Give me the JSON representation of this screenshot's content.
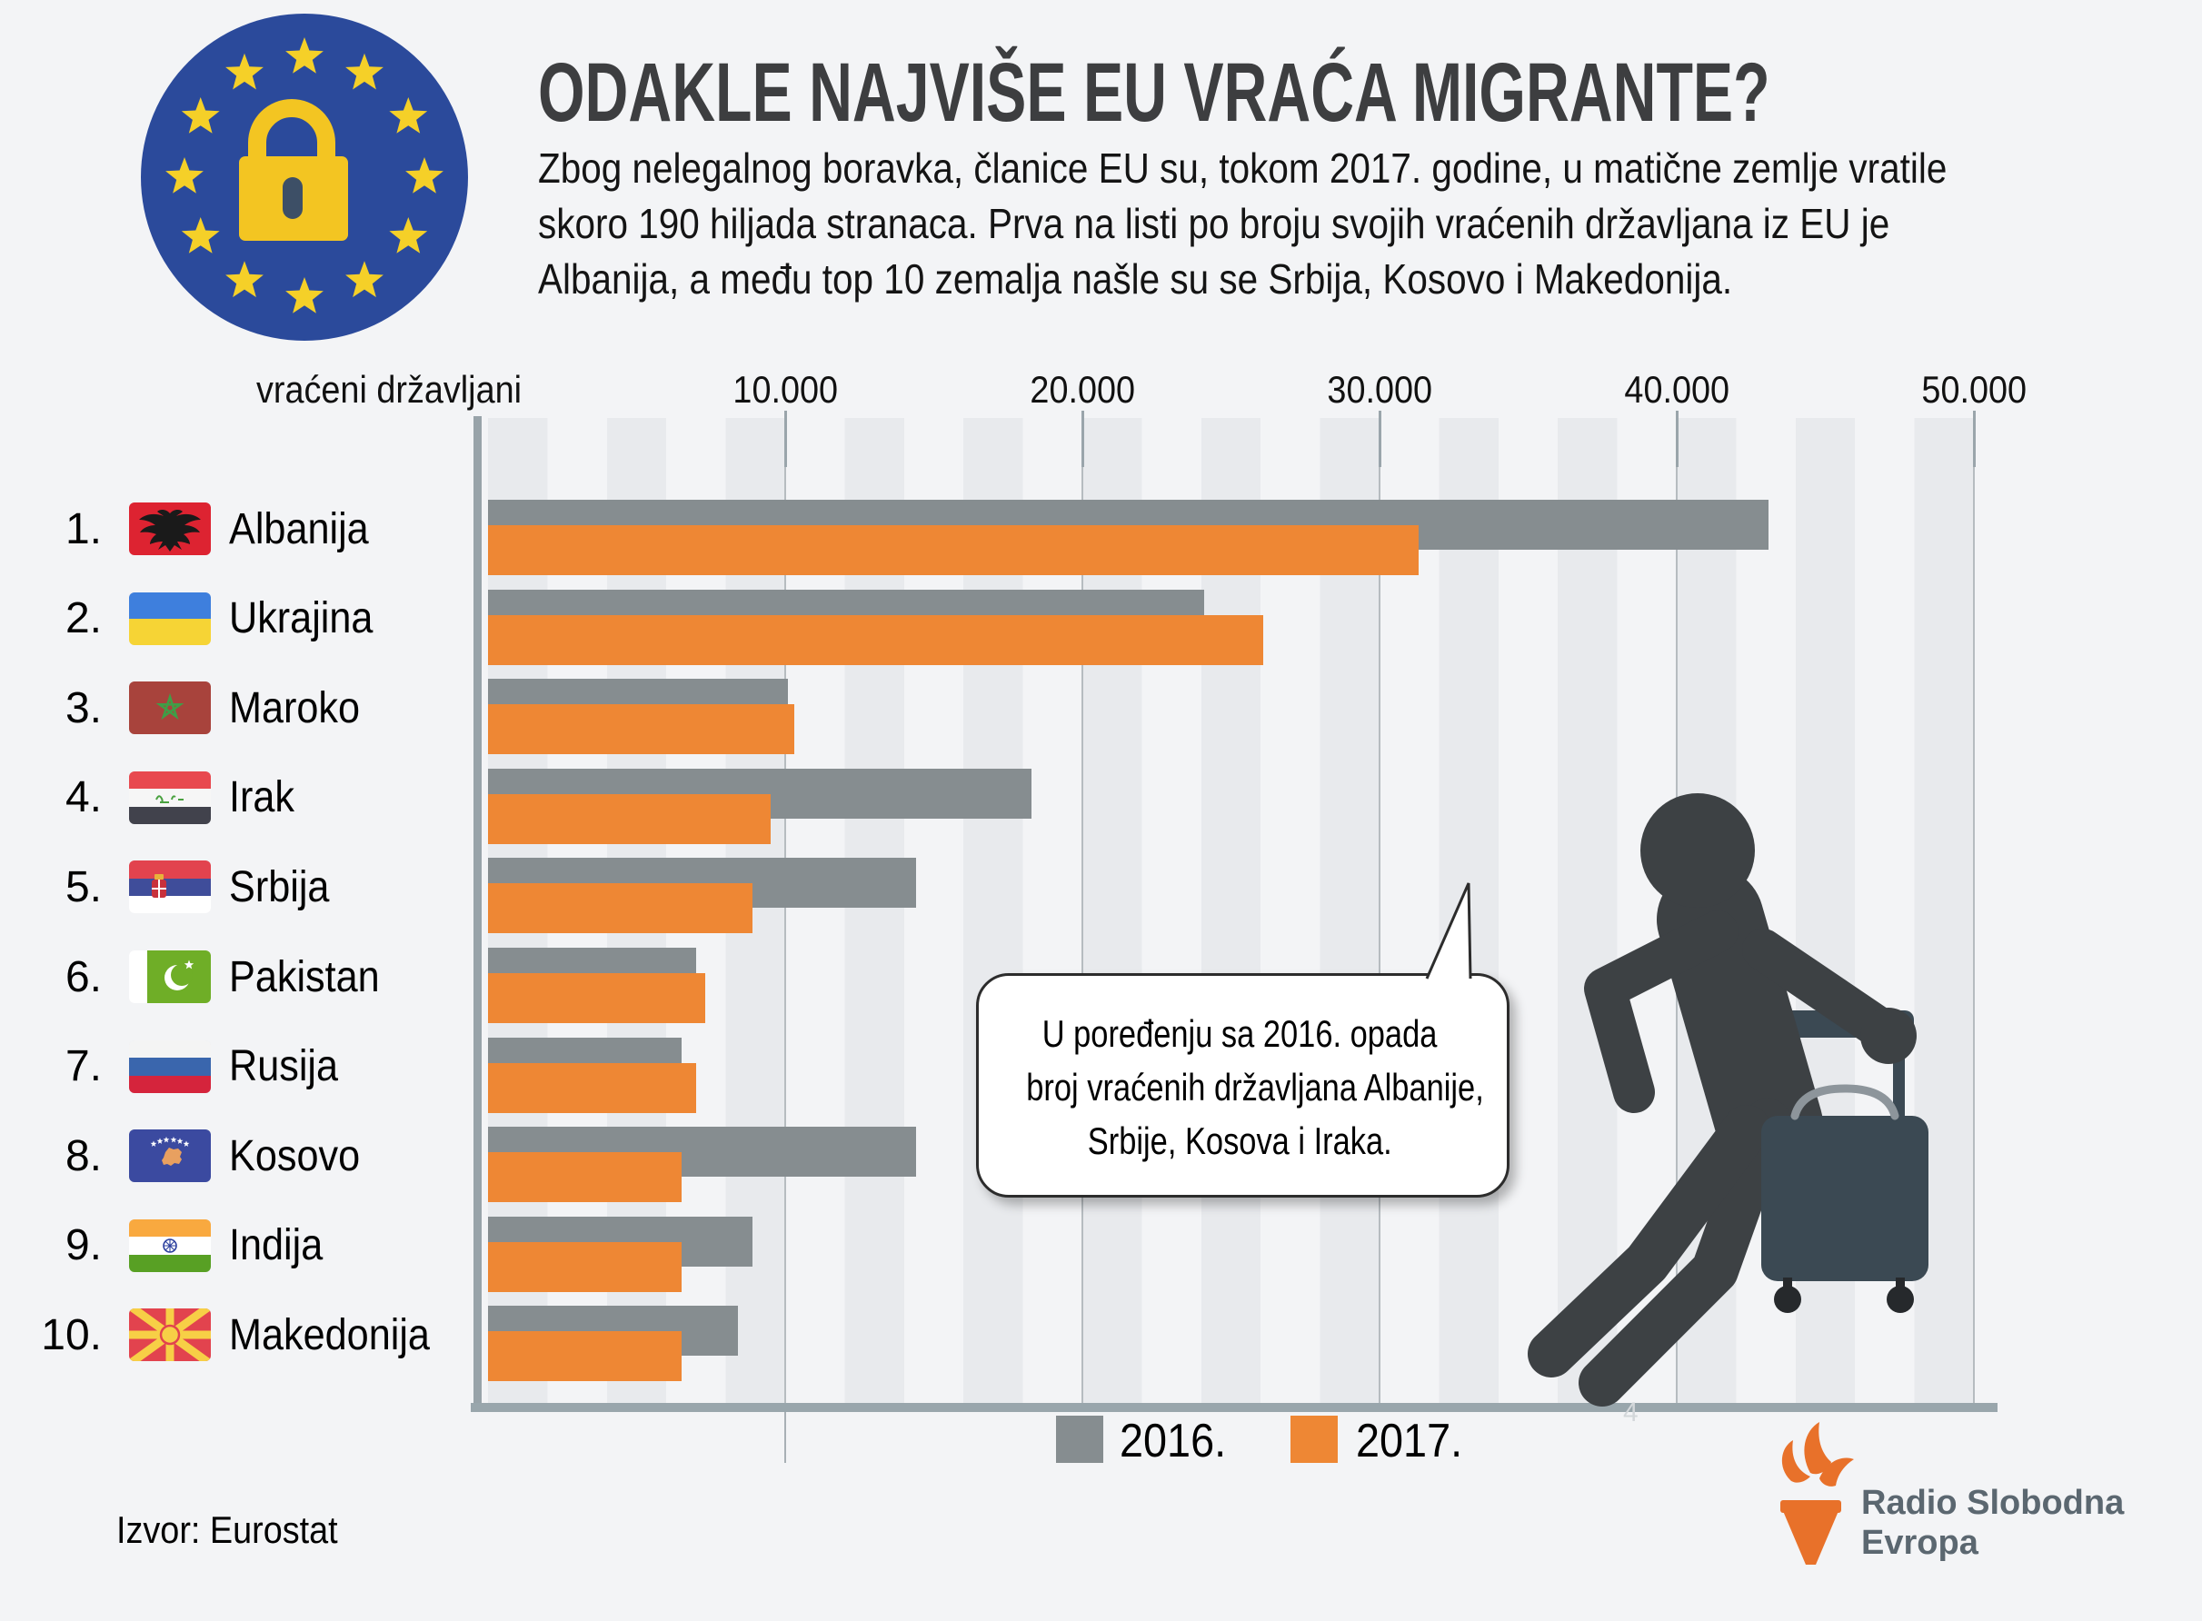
{
  "page": {
    "bg_color": "#f3f4f6"
  },
  "header": {
    "title": "ODAKLE NAJVIŠE EU VRAĆA MIGRANTE?",
    "subtitle_lines": [
      "Zbog nelegalnog boravka, članice EU su, tokom 2017. godine, u matične zemlje vratile",
      "skoro 190 hiljada stranaca. Prva na listi po broju svojih vraćenih državljana iz EU je",
      "Albanija, a među top 10 zemalja našle su se Srbija, Kosovo i Makedonija."
    ]
  },
  "eu_logo": {
    "circle_color": "#2b4a9b",
    "star_color": "#f5d028",
    "padlock_color": "#f3c522",
    "keyhole_color": "#3d4f66"
  },
  "chart": {
    "axis_title": "vraćeni državljani",
    "tick_labels": [
      "10.000",
      "20.000",
      "30.000",
      "40.000",
      "50.000"
    ]
  },
  "chart_data": {
    "type": "bar",
    "orientation": "horizontal",
    "title": "ODAKLE NAJVIŠE EU VRAĆA MIGRANTE?",
    "xlabel": "vraćeni državljani",
    "xlim": [
      0,
      50000
    ],
    "xticks": [
      10000,
      20000,
      30000,
      40000,
      50000
    ],
    "grid": "vertical-stripes",
    "legend_position": "bottom",
    "categories": [
      "Albanija",
      "Ukrajina",
      "Maroko",
      "Irak",
      "Srbija",
      "Pakistan",
      "Rusija",
      "Kosovo",
      "Indija",
      "Makedonija"
    ],
    "ranks": [
      "1.",
      "2.",
      "3.",
      "4.",
      "5.",
      "6.",
      "7.",
      "8.",
      "9.",
      "10."
    ],
    "flags": [
      "albania",
      "ukraine",
      "morocco",
      "iraq",
      "serbia",
      "pakistan",
      "russia",
      "kosovo",
      "india",
      "macedonia"
    ],
    "series": [
      {
        "name": "2016.",
        "color": "#868d90",
        "values": [
          43100,
          24100,
          10100,
          18300,
          14400,
          7000,
          6500,
          14400,
          8900,
          8400
        ]
      },
      {
        "name": "2017.",
        "color": "#ee8734",
        "values": [
          31300,
          26100,
          10300,
          9500,
          8900,
          7300,
          7000,
          6500,
          6500,
          6500
        ]
      }
    ]
  },
  "annotation_bubble": {
    "lines": [
      "U poređenju sa 2016. opada",
      "broj vraćenih državljana Albanije,",
      "Srbije, Kosova i Iraka."
    ]
  },
  "legend": {
    "items": [
      {
        "label": "2016.",
        "color": "#868d90"
      },
      {
        "label": "2017.",
        "color": "#ee8734"
      }
    ]
  },
  "source_text": "Izvor: Eurostat",
  "stray_mark": "4",
  "brand": {
    "line1": "Radio Slobodna",
    "line2": "Evropa",
    "text_color": "#5b6770",
    "torch_color": "#e8712a"
  }
}
